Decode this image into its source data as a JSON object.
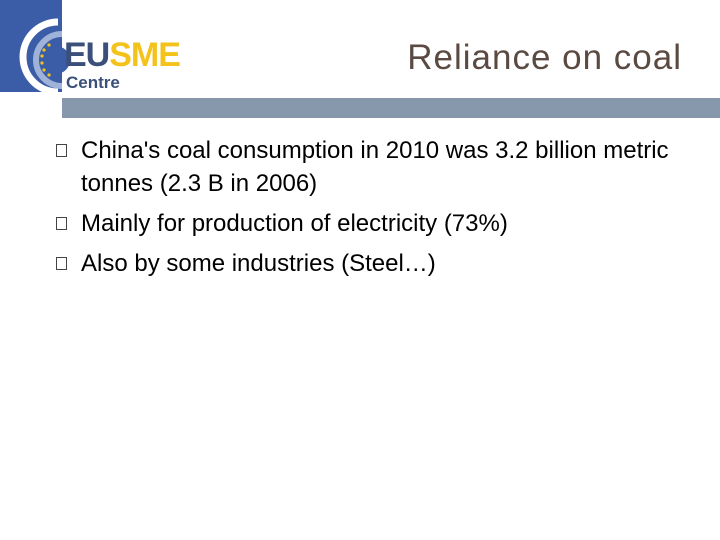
{
  "logo": {
    "brand_part1": "EU",
    "brand_part2": "SME",
    "subtitle": "Centre"
  },
  "title": "Reliance on coal",
  "bullets": [
    "China's coal consumption in 2010 was 3.2 billion metric tonnes (2.3 B in 2006)",
    "Mainly for production of electricity (73%)",
    "Also by some industries (Steel…)"
  ]
}
